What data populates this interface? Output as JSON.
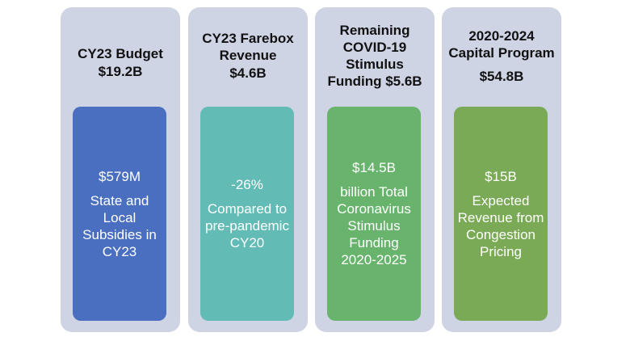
{
  "panels": [
    {
      "title": "CY23 Budget",
      "amount": "$19.2B",
      "card_figure": "$579M",
      "card_text": "State and Local Subsidies in CY23",
      "card_color": "#4a6fc0"
    },
    {
      "title": "CY23 Farebox Revenue",
      "amount": "$4.6B",
      "card_figure": "-26%",
      "card_text": "Compared to pre-pandemic CY20",
      "card_color": "#62bbb5"
    },
    {
      "title": "Remaining COVID-19 Stimulus Funding $5.6B",
      "amount": "",
      "card_figure": "$14.5B",
      "card_text": "billion Total Coronavirus Stimulus Funding 2020-2025",
      "card_color": "#68b46c"
    },
    {
      "title": "2020-2024 Capital Program",
      "amount": "$54.8B",
      "card_figure": "$15B",
      "card_text": "Expected Revenue from Congestion Pricing",
      "card_color": "#7aaa55"
    }
  ]
}
